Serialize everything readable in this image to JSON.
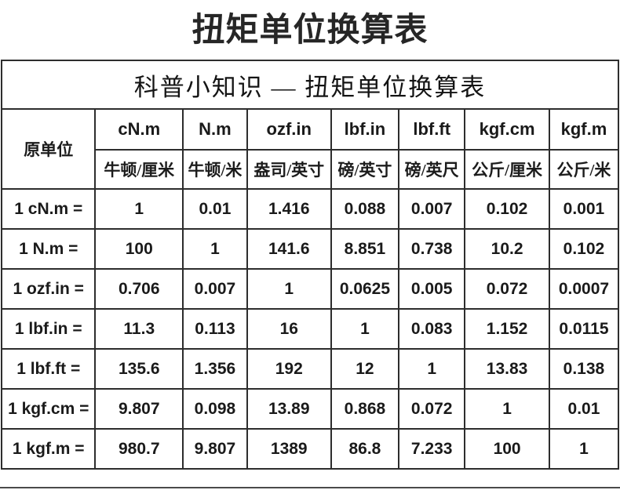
{
  "title": "扭矩单位换算表",
  "table": {
    "caption": "科普小知识 — 扭矩单位换算表",
    "row_header": "原单位",
    "columns": [
      {
        "unit": "cN.m",
        "cn": "牛顿/厘米"
      },
      {
        "unit": "N.m",
        "cn": "牛顿/米"
      },
      {
        "unit": "ozf.in",
        "cn": "盎司/英寸"
      },
      {
        "unit": "lbf.in",
        "cn": "磅/英寸"
      },
      {
        "unit": "lbf.ft",
        "cn": "磅/英尺"
      },
      {
        "unit": "kgf.cm",
        "cn": "公斤/厘米"
      },
      {
        "unit": "kgf.m",
        "cn": "公斤/米"
      }
    ],
    "rows": [
      {
        "label": "1 cN.m =",
        "values": [
          "1",
          "0.01",
          "1.416",
          "0.088",
          "0.007",
          "0.102",
          "0.001"
        ]
      },
      {
        "label": "1 N.m =",
        "values": [
          "100",
          "1",
          "141.6",
          "8.851",
          "0.738",
          "10.2",
          "0.102"
        ]
      },
      {
        "label": "1 ozf.in =",
        "values": [
          "0.706",
          "0.007",
          "1",
          "0.0625",
          "0.005",
          "0.072",
          "0.0007"
        ]
      },
      {
        "label": "1 lbf.in =",
        "values": [
          "11.3",
          "0.113",
          "16",
          "1",
          "0.083",
          "1.152",
          "0.0115"
        ]
      },
      {
        "label": "1 lbf.ft =",
        "values": [
          "135.6",
          "1.356",
          "192",
          "12",
          "1",
          "13.83",
          "0.138"
        ]
      },
      {
        "label": "1 kgf.cm =",
        "values": [
          "9.807",
          "0.098",
          "13.89",
          "0.868",
          "0.072",
          "1",
          "0.01"
        ]
      },
      {
        "label": "1 kgf.m =",
        "values": [
          "980.7",
          "9.807",
          "1389",
          "86.8",
          "7.233",
          "100",
          "1"
        ]
      }
    ]
  },
  "colors": {
    "text": "#212121",
    "border": "#2d2d2d",
    "background": "#ffffff",
    "bottom_divider": "#4a4a4a"
  }
}
